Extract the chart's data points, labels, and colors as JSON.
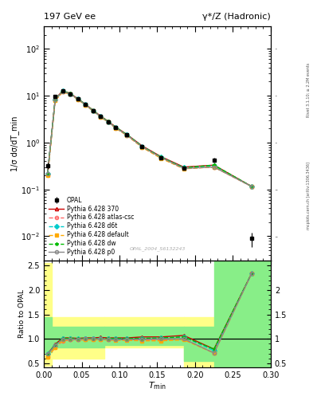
{
  "title_left": "197 GeV ee",
  "title_right": "γ*/Z (Hadronic)",
  "ylabel_main": "1/σ dσ/dT_min",
  "ylabel_ratio": "Ratio to OPAL",
  "xlabel": "T_min",
  "watermark": "OPAL_2004_S6132243",
  "right_label": "mcplots.cern.ch [arXiv:1306.3436]",
  "right_label2": "Rivet 3.1.10; ≥ 2.2M events",
  "opal_x": [
    0.005,
    0.015,
    0.025,
    0.035,
    0.045,
    0.055,
    0.065,
    0.075,
    0.085,
    0.095,
    0.11,
    0.13,
    0.155,
    0.185,
    0.225,
    0.275
  ],
  "opal_y": [
    0.32,
    9.5,
    12.5,
    11.0,
    8.5,
    6.5,
    4.8,
    3.6,
    2.8,
    2.1,
    1.45,
    0.82,
    0.48,
    0.28,
    0.42,
    0.009
  ],
  "opal_yerr": [
    0.05,
    0.5,
    0.5,
    0.4,
    0.3,
    0.2,
    0.2,
    0.15,
    0.12,
    0.1,
    0.05,
    0.03,
    0.02,
    0.015,
    0.05,
    0.003
  ],
  "py370_y": [
    0.22,
    8.5,
    12.8,
    11.2,
    8.6,
    6.6,
    4.9,
    3.7,
    2.85,
    2.15,
    1.48,
    0.85,
    0.5,
    0.3,
    0.33,
    0.115
  ],
  "pyatlas_y": [
    0.2,
    7.8,
    12.0,
    10.8,
    8.3,
    6.4,
    4.75,
    3.55,
    2.75,
    2.05,
    1.42,
    0.8,
    0.47,
    0.28,
    0.3,
    0.115
  ],
  "pyd6t_y": [
    0.22,
    8.2,
    12.5,
    11.0,
    8.5,
    6.5,
    4.8,
    3.6,
    2.8,
    2.1,
    1.46,
    0.83,
    0.49,
    0.29,
    0.32,
    0.115
  ],
  "pydef_y": [
    0.2,
    7.9,
    12.1,
    10.8,
    8.3,
    6.35,
    4.72,
    3.54,
    2.73,
    2.04,
    1.41,
    0.79,
    0.46,
    0.275,
    0.3,
    0.115
  ],
  "pydw_y": [
    0.22,
    8.4,
    12.6,
    11.1,
    8.55,
    6.55,
    4.85,
    3.65,
    2.82,
    2.12,
    1.47,
    0.83,
    0.49,
    0.29,
    0.33,
    0.115
  ],
  "pyp0_y": [
    0.22,
    8.3,
    12.4,
    10.9,
    8.45,
    6.48,
    4.78,
    3.58,
    2.77,
    2.07,
    1.44,
    0.81,
    0.48,
    0.28,
    0.3,
    0.115
  ],
  "ratio_py370": [
    0.69,
    0.89,
    1.02,
    1.02,
    1.01,
    1.02,
    1.02,
    1.03,
    1.02,
    1.02,
    1.02,
    1.04,
    1.04,
    1.07,
    0.79,
    2.35
  ],
  "ratio_pyatlas": [
    0.63,
    0.82,
    0.96,
    0.98,
    0.98,
    0.98,
    0.99,
    0.99,
    0.98,
    0.98,
    0.98,
    0.98,
    0.98,
    1.0,
    0.71,
    2.35
  ],
  "ratio_pyd6t": [
    0.69,
    0.86,
    1.0,
    1.0,
    1.0,
    1.0,
    1.0,
    1.0,
    1.0,
    1.0,
    1.01,
    1.01,
    1.02,
    1.04,
    0.76,
    2.35
  ],
  "ratio_pydef": [
    0.63,
    0.83,
    0.97,
    0.98,
    0.98,
    0.98,
    0.98,
    0.98,
    0.98,
    0.97,
    0.97,
    0.96,
    0.96,
    0.98,
    0.71,
    2.35
  ],
  "ratio_pydw": [
    0.69,
    0.88,
    1.01,
    1.01,
    1.01,
    1.01,
    1.01,
    1.01,
    1.01,
    1.01,
    1.01,
    1.01,
    1.02,
    1.04,
    0.79,
    2.35
  ],
  "ratio_pyp0": [
    0.69,
    0.87,
    0.99,
    0.99,
    0.99,
    1.0,
    1.0,
    1.0,
    0.99,
    0.98,
    0.99,
    0.99,
    1.0,
    1.0,
    0.71,
    2.35
  ],
  "colors": {
    "opal": "#000000",
    "py370": "#cc0000",
    "pyatlas": "#ff6666",
    "pyd6t": "#00cccc",
    "pydef": "#ffaa00",
    "pydw": "#00bb00",
    "pyp0": "#888888"
  },
  "ylim_main": [
    0.003,
    300
  ],
  "ylim_ratio": [
    0.42,
    2.6
  ],
  "xlim": [
    0.0,
    0.3
  ],
  "background": "#ffffff",
  "plot_bg": "#ffffff"
}
